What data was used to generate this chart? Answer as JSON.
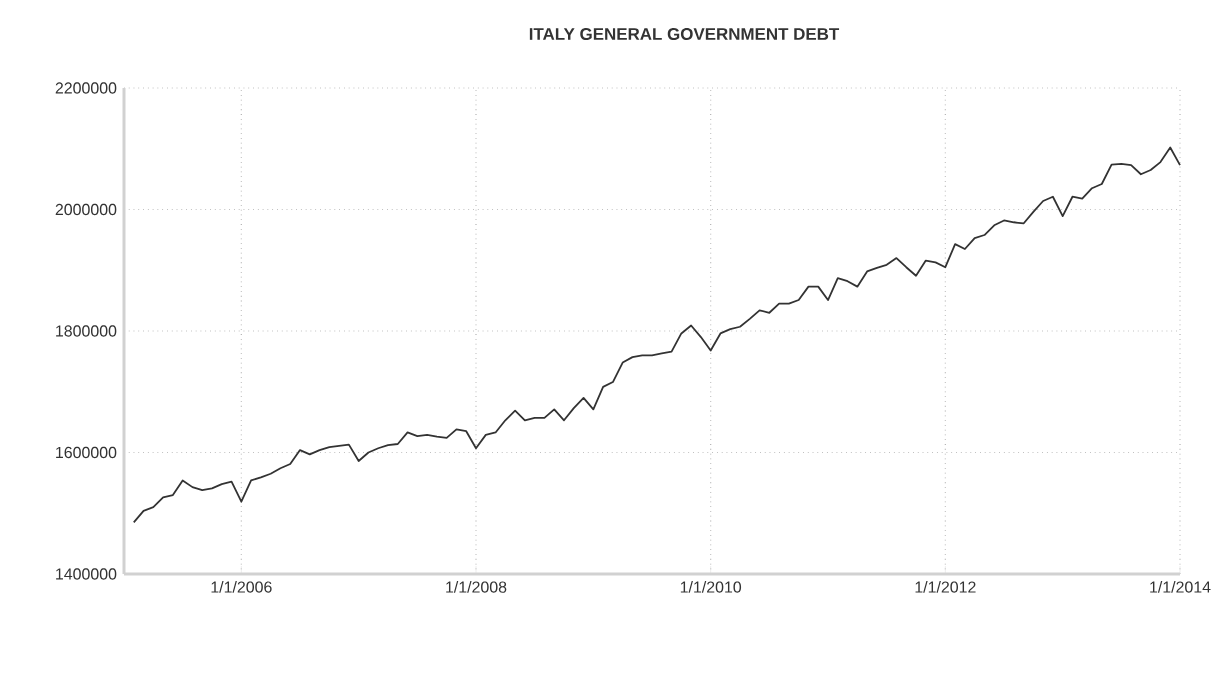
{
  "chart_data": {
    "type": "line",
    "title": "ITALY GENERAL GOVERNMENT DEBT",
    "color": "#333333",
    "grid": true,
    "x": [
      "2005-02",
      "2005-03",
      "2005-04",
      "2005-05",
      "2005-06",
      "2005-07",
      "2005-08",
      "2005-09",
      "2005-10",
      "2005-11",
      "2005-12",
      "2006-01",
      "2006-02",
      "2006-03",
      "2006-04",
      "2006-05",
      "2006-06",
      "2006-07",
      "2006-08",
      "2006-09",
      "2006-10",
      "2006-11",
      "2006-12",
      "2007-01",
      "2007-02",
      "2007-03",
      "2007-04",
      "2007-05",
      "2007-06",
      "2007-07",
      "2007-08",
      "2007-09",
      "2007-10",
      "2007-11",
      "2007-12",
      "2008-01",
      "2008-02",
      "2008-03",
      "2008-04",
      "2008-05",
      "2008-06",
      "2008-07",
      "2008-08",
      "2008-09",
      "2008-10",
      "2008-11",
      "2008-12",
      "2009-01",
      "2009-02",
      "2009-03",
      "2009-04",
      "2009-05",
      "2009-06",
      "2009-07",
      "2009-08",
      "2009-09",
      "2009-10",
      "2009-11",
      "2009-12",
      "2010-01",
      "2010-02",
      "2010-03",
      "2010-04",
      "2010-05",
      "2010-06",
      "2010-07",
      "2010-08",
      "2010-09",
      "2010-10",
      "2010-11",
      "2010-12",
      "2011-01",
      "2011-02",
      "2011-03",
      "2011-04",
      "2011-05",
      "2011-06",
      "2011-07",
      "2011-08",
      "2011-09",
      "2011-10",
      "2011-11",
      "2011-12",
      "2012-01",
      "2012-02",
      "2012-03",
      "2012-04",
      "2012-05",
      "2012-06",
      "2012-07",
      "2012-08",
      "2012-09",
      "2012-10",
      "2012-11",
      "2012-12",
      "2013-01",
      "2013-02",
      "2013-03",
      "2013-04",
      "2013-05",
      "2013-06",
      "2013-07",
      "2013-08",
      "2013-09",
      "2013-10",
      "2013-11",
      "2013-12",
      "2014-01"
    ],
    "values": [
      1485000,
      1504000,
      1510000,
      1526000,
      1530000,
      1554000,
      1543000,
      1538000,
      1541000,
      1548000,
      1552000,
      1519000,
      1554000,
      1559000,
      1565000,
      1574000,
      1581000,
      1604000,
      1597000,
      1604000,
      1609000,
      1611000,
      1613000,
      1586000,
      1600000,
      1607000,
      1612000,
      1614000,
      1633000,
      1627000,
      1629000,
      1626000,
      1624000,
      1638000,
      1635000,
      1607000,
      1629000,
      1633000,
      1653000,
      1669000,
      1653000,
      1657000,
      1657000,
      1671000,
      1653000,
      1673000,
      1690000,
      1671000,
      1708000,
      1716000,
      1748000,
      1757000,
      1760000,
      1760000,
      1763000,
      1766000,
      1796000,
      1809000,
      1790000,
      1768000,
      1796000,
      1803000,
      1807000,
      1820000,
      1834000,
      1830000,
      1845000,
      1845000,
      1851000,
      1873000,
      1873000,
      1851000,
      1887000,
      1882000,
      1873000,
      1898000,
      1904000,
      1909000,
      1920000,
      1905000,
      1891000,
      1916000,
      1913000,
      1905000,
      1943000,
      1935000,
      1953000,
      1958000,
      1974000,
      1982000,
      1979000,
      1977000,
      1996000,
      2014000,
      2021000,
      1989000,
      2021000,
      2018000,
      2035000,
      2042000,
      2074000,
      2075000,
      2073000,
      2058000,
      2065000,
      2078000,
      2102000,
      2073000
    ],
    "xlim": [
      "2005-01",
      "2014-01"
    ],
    "ylim": [
      1400000,
      2200000
    ],
    "xticks": [
      {
        "value": "2006-01-01",
        "label": "1/1/2006"
      },
      {
        "value": "2008-01-01",
        "label": "1/1/2008"
      },
      {
        "value": "2010-01-01",
        "label": "1/1/2010"
      },
      {
        "value": "2012-01-01",
        "label": "1/1/2012"
      },
      {
        "value": "2014-01-01",
        "label": "1/1/2014"
      }
    ],
    "yticks": [
      1400000,
      1600000,
      1800000,
      2000000,
      2200000
    ]
  }
}
